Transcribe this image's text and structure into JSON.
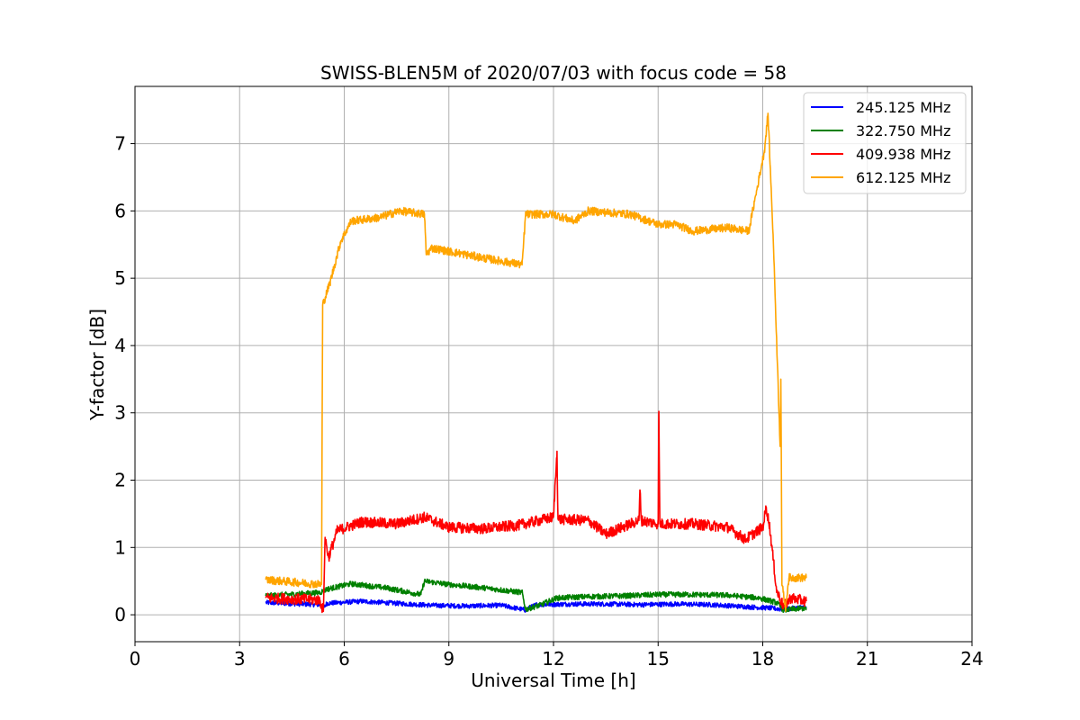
{
  "chart_data": {
    "type": "line",
    "title": "SWISS-BLEN5M of 2020/07/03 with focus code = 58",
    "xlabel": "Universal Time [h]",
    "ylabel": "Y-factor [dB]",
    "xlim": [
      0,
      24
    ],
    "ylim": [
      -0.4,
      7.85
    ],
    "xticks": [
      0,
      3,
      6,
      9,
      12,
      15,
      18,
      21,
      24
    ],
    "yticks": [
      0,
      1,
      2,
      3,
      4,
      5,
      6,
      7
    ],
    "grid": true,
    "legend_position": "top-right",
    "series": [
      {
        "name": "245.125 MHz",
        "color": "#0000ff",
        "noise": 0.035,
        "points": [
          [
            3.75,
            0.18
          ],
          [
            5.3,
            0.15
          ],
          [
            5.4,
            0.1
          ],
          [
            5.5,
            0.17
          ],
          [
            6.5,
            0.2
          ],
          [
            7.5,
            0.17
          ],
          [
            8.5,
            0.14
          ],
          [
            9.5,
            0.13
          ],
          [
            10.5,
            0.14
          ],
          [
            11.2,
            0.07
          ],
          [
            11.5,
            0.15
          ],
          [
            12.5,
            0.16
          ],
          [
            13.5,
            0.16
          ],
          [
            14.5,
            0.15
          ],
          [
            15.5,
            0.16
          ],
          [
            16.5,
            0.15
          ],
          [
            17.5,
            0.12
          ],
          [
            18.2,
            0.1
          ],
          [
            18.6,
            0.08
          ],
          [
            19.25,
            0.12
          ]
        ]
      },
      {
        "name": "322.750 MHz",
        "color": "#008000",
        "noise": 0.04,
        "points": [
          [
            3.75,
            0.28
          ],
          [
            5.3,
            0.33
          ],
          [
            5.5,
            0.38
          ],
          [
            6.2,
            0.46
          ],
          [
            7.2,
            0.4
          ],
          [
            8.2,
            0.3
          ],
          [
            8.3,
            0.5
          ],
          [
            9,
            0.45
          ],
          [
            10,
            0.4
          ],
          [
            11.1,
            0.33
          ],
          [
            11.2,
            0.08
          ],
          [
            11.6,
            0.14
          ],
          [
            12.1,
            0.25
          ],
          [
            13,
            0.27
          ],
          [
            14,
            0.28
          ],
          [
            15,
            0.3
          ],
          [
            16,
            0.3
          ],
          [
            17,
            0.29
          ],
          [
            17.9,
            0.25
          ],
          [
            18.4,
            0.18
          ],
          [
            18.6,
            0.07
          ],
          [
            19.25,
            0.1
          ]
        ]
      },
      {
        "name": "409.938 MHz",
        "color": "#ff0000",
        "noise": 0.08,
        "points": [
          [
            3.75,
            0.25
          ],
          [
            5.3,
            0.22
          ],
          [
            5.4,
            0.05
          ],
          [
            5.45,
            1.15
          ],
          [
            5.55,
            0.85
          ],
          [
            5.8,
            1.25
          ],
          [
            6.5,
            1.38
          ],
          [
            7.5,
            1.35
          ],
          [
            8.3,
            1.45
          ],
          [
            9,
            1.3
          ],
          [
            10,
            1.28
          ],
          [
            11,
            1.33
          ],
          [
            12,
            1.45
          ],
          [
            12.1,
            2.43
          ],
          [
            12.13,
            1.42
          ],
          [
            13,
            1.4
          ],
          [
            13.5,
            1.2
          ],
          [
            14.45,
            1.4
          ],
          [
            14.48,
            1.85
          ],
          [
            14.52,
            1.4
          ],
          [
            15,
            1.35
          ],
          [
            15.02,
            3.0
          ],
          [
            15.05,
            1.35
          ],
          [
            16,
            1.35
          ],
          [
            17,
            1.3
          ],
          [
            17.5,
            1.12
          ],
          [
            18,
            1.3
          ],
          [
            18.1,
            1.6
          ],
          [
            18.2,
            1.3
          ],
          [
            18.4,
            0.35
          ],
          [
            18.6,
            0.12
          ],
          [
            18.8,
            0.25
          ],
          [
            19.25,
            0.2
          ]
        ]
      },
      {
        "name": "612.125 MHz",
        "color": "#ffa500",
        "noise": 0.06,
        "points": [
          [
            3.75,
            0.52
          ],
          [
            5.35,
            0.45
          ],
          [
            5.38,
            4.6
          ],
          [
            5.6,
            4.95
          ],
          [
            5.9,
            5.55
          ],
          [
            6.2,
            5.85
          ],
          [
            7,
            5.9
          ],
          [
            7.6,
            6.0
          ],
          [
            8.3,
            5.95
          ],
          [
            8.35,
            5.35
          ],
          [
            8.5,
            5.45
          ],
          [
            9,
            5.4
          ],
          [
            10,
            5.3
          ],
          [
            11.1,
            5.2
          ],
          [
            11.2,
            5.95
          ],
          [
            12,
            5.95
          ],
          [
            12.6,
            5.85
          ],
          [
            13,
            6.0
          ],
          [
            14.2,
            5.95
          ],
          [
            15,
            5.8
          ],
          [
            15.5,
            5.8
          ],
          [
            16,
            5.7
          ],
          [
            17,
            5.75
          ],
          [
            17.6,
            5.7
          ],
          [
            18.05,
            6.9
          ],
          [
            18.15,
            7.45
          ],
          [
            18.3,
            5.6
          ],
          [
            18.5,
            2.5
          ],
          [
            18.52,
            3.5
          ],
          [
            18.55,
            0.45
          ],
          [
            18.65,
            0.1
          ],
          [
            18.75,
            0.55
          ],
          [
            19.25,
            0.55
          ]
        ]
      }
    ]
  }
}
